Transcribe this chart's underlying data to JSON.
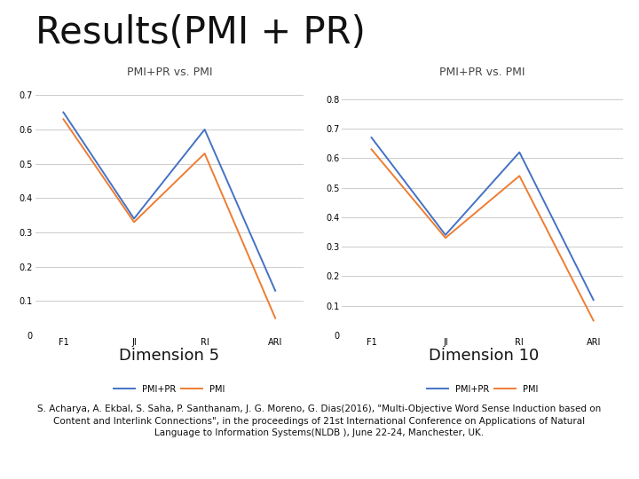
{
  "title": "Results(PMI + PR)",
  "chart_title": "PMI+PR vs. PMI",
  "categories": [
    "F1",
    "JI",
    "RI",
    "ARI"
  ],
  "dim5_pmipr": [
    0.65,
    0.34,
    0.6,
    0.13
  ],
  "dim5_pmi": [
    0.63,
    0.33,
    0.53,
    0.05
  ],
  "dim10_pmipr": [
    0.67,
    0.34,
    0.62,
    0.12
  ],
  "dim10_pmi": [
    0.63,
    0.33,
    0.54,
    0.05
  ],
  "color_pmipr": "#4472C4",
  "color_pmi": "#ED7D31",
  "dim5_yticks": [
    0,
    0.1,
    0.2,
    0.3,
    0.4,
    0.5,
    0.6,
    0.7
  ],
  "dim10_yticks": [
    0,
    0.1,
    0.2,
    0.3,
    0.4,
    0.5,
    0.6,
    0.7,
    0.8
  ],
  "dim5_ylim": [
    0,
    0.74
  ],
  "dim10_ylim": [
    0,
    0.86
  ],
  "label_pmipr": "PMI+PR",
  "label_pmi": "PMI",
  "dim5_label": "Dimension 5",
  "dim10_label": "Dimension 10",
  "footnote_line1": "S. Acharya, A. Ekbal, S. Saha, P. Santhanam, J. G. Moreno, G. Dias(2016), \"Multi-Objective Word Sense Induction based on",
  "footnote_line2": "Content and Interlink Connections\", in the proceedings of 21st International Conference on Applications of Natural",
  "footnote_line3": "Language to Information Systems(NLDB ), June 22-24, Manchester, UK.",
  "bg_color": "#FFFFFF",
  "chart_bg": "#FFFFFF",
  "grid_color": "#CCCCCC",
  "title_fontsize": 30,
  "chart_title_fontsize": 9,
  "dim_label_fontsize": 13,
  "footnote_fontsize": 7.5,
  "tick_fontsize": 7,
  "legend_fontsize": 7,
  "xtick_fontsize": 7
}
